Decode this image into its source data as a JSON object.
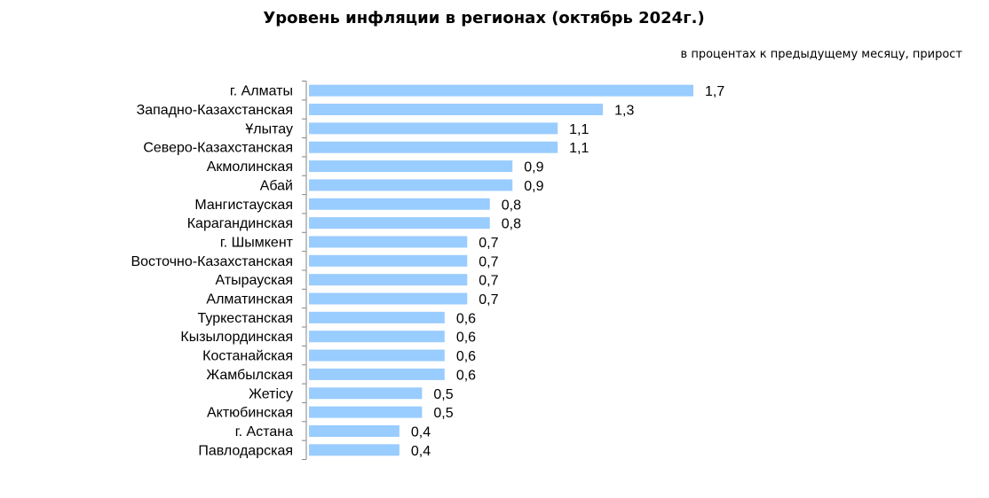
{
  "chart_data": {
    "type": "bar",
    "orientation": "horizontal",
    "title": "Уровень инфляции в регионах (октябрь 2024г.)",
    "subtitle": "в процентах к предыдущему месяцу, прирост",
    "categories": [
      "г. Алматы",
      "Западно-Казахстанская",
      "Ұлытау",
      "Северо-Казахстанская",
      "Акмолинская",
      "Абай",
      "Мангистауская",
      "Карагандинская",
      "г. Шымкент",
      "Восточно-Казахстанская",
      "Атырауская",
      "Алматинская",
      "Туркестанская",
      "Кызылординская",
      "Костанайская",
      "Жамбылская",
      "Жетісу",
      "Актюбинская",
      "г. Астана",
      "Павлодарская"
    ],
    "values": [
      1.7,
      1.3,
      1.1,
      1.1,
      0.9,
      0.9,
      0.8,
      0.8,
      0.7,
      0.7,
      0.7,
      0.7,
      0.6,
      0.6,
      0.6,
      0.6,
      0.5,
      0.5,
      0.4,
      0.4
    ],
    "value_labels": [
      "1,7",
      "1,3",
      "1,1",
      "1,1",
      "0,9",
      "0,9",
      "0,8",
      "0,8",
      "0,7",
      "0,7",
      "0,7",
      "0,7",
      "0,6",
      "0,6",
      "0,6",
      "0,6",
      "0,5",
      "0,5",
      "0,4",
      "0,4"
    ],
    "bar_color": "#99ccff",
    "axis_color": "#868686",
    "grid": false,
    "legend": "none"
  }
}
